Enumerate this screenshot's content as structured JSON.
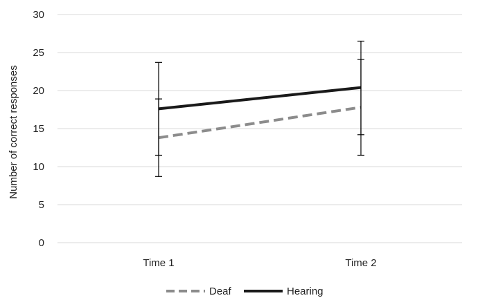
{
  "chart_data": {
    "type": "line",
    "categories": [
      "Time 1",
      "Time 2"
    ],
    "ylabel": "Number of correct responses",
    "xlabel": "",
    "ylim": [
      0,
      30
    ],
    "yticks": [
      0,
      5,
      10,
      15,
      20,
      25,
      30
    ],
    "grid": true,
    "legend_position": "bottom",
    "series": [
      {
        "name": "Deaf",
        "values": [
          13.8,
          17.8
        ],
        "error_low": [
          8.7,
          11.5
        ],
        "error_high": [
          18.9,
          24.1
        ],
        "color": "#8c8c8c",
        "style": "dashed"
      },
      {
        "name": "Hearing",
        "values": [
          17.6,
          20.4
        ],
        "error_low": [
          11.5,
          14.2
        ],
        "error_high": [
          23.7,
          26.5
        ],
        "color": "#1a1a1a",
        "style": "solid"
      }
    ]
  }
}
